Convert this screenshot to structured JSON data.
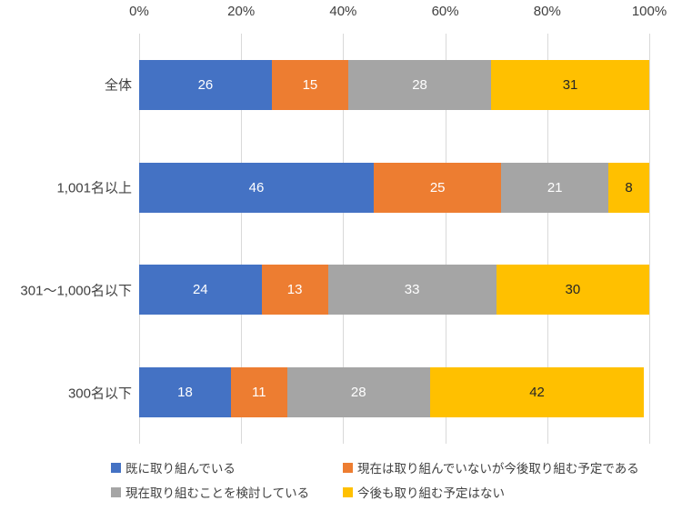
{
  "chart_data": {
    "type": "bar",
    "orientation": "horizontal",
    "stacked": true,
    "unit": "percent",
    "title": "",
    "categories": [
      "全体",
      "1,001名以上",
      "301〜1,000名以下",
      "300名以下"
    ],
    "series": [
      {
        "name": "既に取り組んでいる",
        "color": "#4472C4",
        "label_color": "#FFFFFF",
        "values": [
          26,
          46,
          24,
          18
        ]
      },
      {
        "name": "現在は取り組んでいないが今後取り組む予定である",
        "color": "#ED7D31",
        "label_color": "#FFFFFF",
        "values": [
          15,
          25,
          13,
          11
        ]
      },
      {
        "name": "現在取り組むことを検討している",
        "color": "#A5A5A5",
        "label_color": "#FFFFFF",
        "values": [
          28,
          21,
          33,
          28
        ]
      },
      {
        "name": "今後も取り組む予定はない",
        "color": "#FFC000",
        "label_color": "#262626",
        "values": [
          31,
          8,
          30,
          42
        ]
      }
    ],
    "x_axis": {
      "position": "top",
      "min": 0,
      "max": 100,
      "tick_labels": [
        "0%",
        "20%",
        "40%",
        "60%",
        "80%",
        "100%"
      ]
    },
    "grid": true,
    "gridline_color": "#D9D9D9",
    "data_labels": true,
    "legend_position": "bottom"
  }
}
